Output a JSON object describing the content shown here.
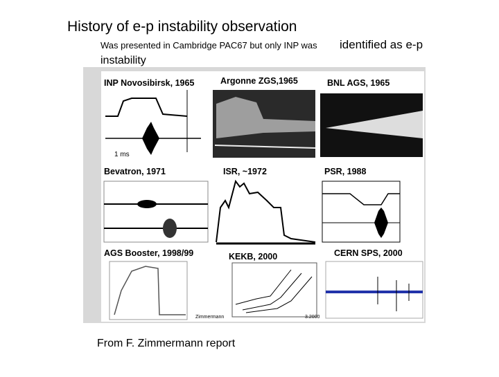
{
  "title": "History of e-p instability observation",
  "subtitle": {
    "small": "Was presented in Cambridge PAC67 but only INP was",
    "large": "identified as e-p",
    "continued": "instability"
  },
  "panels": [
    {
      "label": "INP Novosibirsk, 1965"
    },
    {
      "label": "Argonne ZGS,1965"
    },
    {
      "label": "BNL AGS, 1965"
    },
    {
      "label": "Bevatron, 1971"
    },
    {
      "label": "ISR, ~1972"
    },
    {
      "label": "PSR, 1988"
    },
    {
      "label": "AGS Booster, 1998/99"
    },
    {
      "label": "KEKB, 2000"
    },
    {
      "label": "CERN SPS, 2000"
    }
  ],
  "annotations": [
    "1 ms",
    "Zimmermann",
    "3.2000"
  ],
  "footer": "From F. Zimmermann report"
}
